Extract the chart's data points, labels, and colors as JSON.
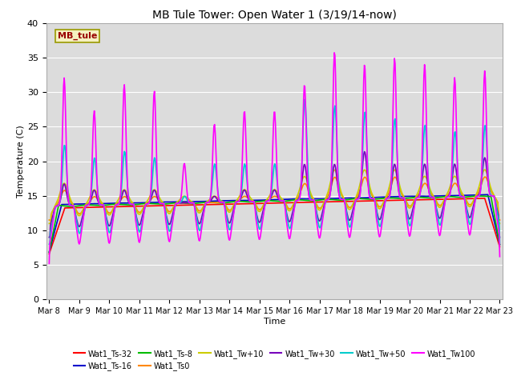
{
  "title": "MB Tule Tower: Open Water 1 (3/19/14-now)",
  "xlabel": "Time",
  "ylabel": "Temperature (C)",
  "ylim": [
    0,
    40
  ],
  "yticks": [
    0,
    5,
    10,
    15,
    20,
    25,
    30,
    35,
    40
  ],
  "bg_color": "#dcdcdc",
  "fig_color": "#ffffff",
  "series_order": [
    "Wat1_Ts-32",
    "Wat1_Ts-16",
    "Wat1_Ts-8",
    "Wat1_Ts0",
    "Wat1_Tw+10",
    "Wat1_Tw+30",
    "Wat1_Tw+50",
    "Wat1_Tw100"
  ],
  "series": {
    "Wat1_Ts-32": {
      "color": "#ff0000",
      "lw": 1.2
    },
    "Wat1_Ts-16": {
      "color": "#0000cc",
      "lw": 1.2
    },
    "Wat1_Ts-8": {
      "color": "#00bb00",
      "lw": 1.2
    },
    "Wat1_Ts0": {
      "color": "#ff8800",
      "lw": 1.2
    },
    "Wat1_Tw+10": {
      "color": "#cccc00",
      "lw": 1.2
    },
    "Wat1_Tw+30": {
      "color": "#7700bb",
      "lw": 1.2
    },
    "Wat1_Tw+50": {
      "color": "#00cccc",
      "lw": 1.2
    },
    "Wat1_Tw100": {
      "color": "#ff00ff",
      "lw": 1.2
    }
  },
  "start_day": 8,
  "end_day": 23,
  "n_points": 720,
  "annotation_label": "MB_tule",
  "annotation_color": "#990000",
  "annotation_bg": "#f5f0c0",
  "annotation_border": "#999900",
  "legend_ncol": 6
}
